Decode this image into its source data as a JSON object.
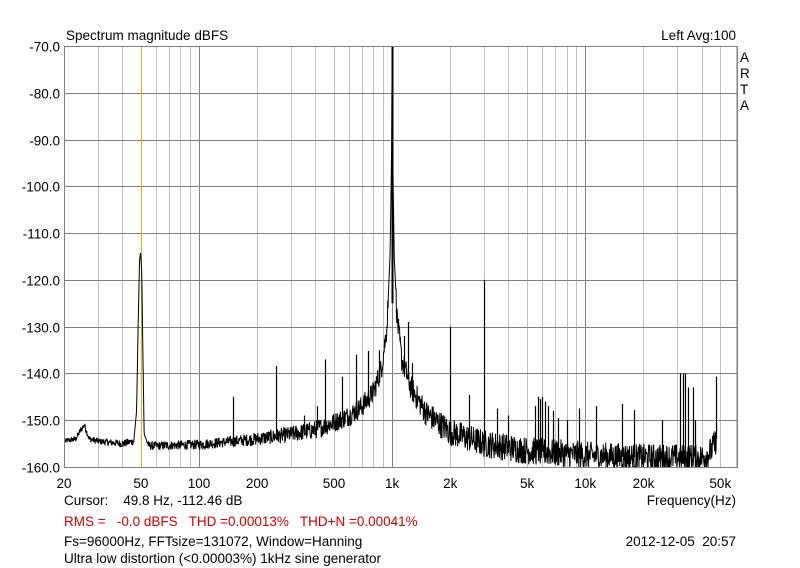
{
  "header": {
    "title": "Spectrum magnitude dBFS",
    "channel_avg": "Left  Avg:100",
    "brand_letters": [
      "A",
      "R",
      "T",
      "A"
    ]
  },
  "footer": {
    "cursor": "Cursor:    49.8 Hz, -112.46 dB",
    "xlabel": "Frequency(Hz)",
    "metrics": "RMS =   -0.0 dBFS   THD =0.00013%   THD+N =0.00041%",
    "params": "Fs=96000Hz, FFTsize=131072, Window=Hanning",
    "datetime": "2012-12-05  20:57",
    "note": "Ultra low distortion (<0.00003%) 1kHz sine generator"
  },
  "colors": {
    "trace": "#000000",
    "cursor": "#c8c000",
    "grid_major": "#808080",
    "grid_minor": "#c0c0c0",
    "metrics": "#d00000"
  },
  "chart_data": {
    "type": "line",
    "title": "Spectrum magnitude dBFS",
    "xlabel": "Frequency(Hz)",
    "ylabel": "dBFS",
    "xscale": "log",
    "xlim": [
      20,
      61000
    ],
    "ylim": [
      -160,
      -70
    ],
    "grid": true,
    "x_ticks": [
      20,
      50,
      100,
      200,
      500,
      1000,
      2000,
      5000,
      10000,
      20000,
      50000
    ],
    "x_tick_labels": [
      "20",
      "50",
      "100",
      "200",
      "500",
      "1k",
      "2k",
      "5k",
      "10k",
      "20k",
      "50k"
    ],
    "y_ticks": [
      -70,
      -80,
      -90,
      -100,
      -110,
      -120,
      -130,
      -140,
      -150,
      -160
    ],
    "y_tick_labels": [
      "-70.0",
      "-80.0",
      "-90.0",
      "-100.0",
      "-110.0",
      "-120.0",
      "-130.0",
      "-140.0",
      "-150.0",
      "-160.0"
    ],
    "cursor_hz": 49.8,
    "noise_floor": [
      [
        20,
        -154.5
      ],
      [
        23,
        -154
      ],
      [
        24.5,
        -152
      ],
      [
        25.5,
        -151
      ],
      [
        27,
        -154
      ],
      [
        30,
        -154.5
      ],
      [
        40,
        -155
      ],
      [
        46,
        -154.5
      ],
      [
        47.5,
        -148
      ],
      [
        48.5,
        -128
      ],
      [
        49.2,
        -116
      ],
      [
        49.8,
        -114
      ],
      [
        50.5,
        -118
      ],
      [
        51.2,
        -135
      ],
      [
        52,
        -153
      ],
      [
        55,
        -155.5
      ],
      [
        100,
        -155.2
      ],
      [
        150,
        -154.5
      ],
      [
        200,
        -154
      ],
      [
        300,
        -153
      ],
      [
        400,
        -152
      ],
      [
        500,
        -150.5
      ],
      [
        600,
        -149
      ],
      [
        700,
        -147
      ],
      [
        800,
        -144
      ],
      [
        880,
        -139
      ],
      [
        940,
        -130
      ],
      [
        975,
        -115
      ],
      [
        992,
        -95
      ],
      [
        1000,
        -70
      ],
      [
        1008,
        -95
      ],
      [
        1025,
        -115
      ],
      [
        1060,
        -128
      ],
      [
        1120,
        -137
      ],
      [
        1250,
        -143
      ],
      [
        1500,
        -148.5
      ],
      [
        2000,
        -152.5
      ],
      [
        3000,
        -155
      ],
      [
        5000,
        -156.5
      ],
      [
        10000,
        -157.5
      ],
      [
        20000,
        -158
      ],
      [
        40000,
        -158
      ],
      [
        44000,
        -157
      ],
      [
        47000,
        -155
      ],
      [
        48000,
        -153
      ]
    ],
    "noise_jitter_db": [
      [
        20,
        0.6
      ],
      [
        150,
        1.2
      ],
      [
        400,
        2.0
      ],
      [
        2000,
        3.0
      ],
      [
        48000,
        3.0
      ]
    ],
    "spikes": [
      [
        150,
        -145
      ],
      [
        250,
        -138.4
      ],
      [
        350,
        -149
      ],
      [
        410,
        -147
      ],
      [
        450,
        -137
      ],
      [
        550,
        -140.7
      ],
      [
        650,
        -136
      ],
      [
        750,
        -135.2
      ],
      [
        850,
        -135
      ],
      [
        1150,
        -132
      ],
      [
        1210,
        -129
      ],
      [
        1260,
        -137.8
      ],
      [
        2000,
        -130
      ],
      [
        2500,
        -144.6
      ],
      [
        3000,
        -120
      ],
      [
        3500,
        -147.5
      ],
      [
        4000,
        -149
      ],
      [
        5500,
        -147
      ],
      [
        5700,
        -145
      ],
      [
        5800,
        -145.5
      ],
      [
        6000,
        -145
      ],
      [
        6200,
        -146
      ],
      [
        6400,
        -147
      ],
      [
        6800,
        -148
      ],
      [
        7200,
        -149.5
      ],
      [
        8000,
        -150
      ],
      [
        9300,
        -147.5
      ],
      [
        11300,
        -147
      ],
      [
        15500,
        -146.5
      ],
      [
        17800,
        -147.8
      ],
      [
        25000,
        -150
      ],
      [
        31000,
        -140
      ],
      [
        32000,
        -140
      ],
      [
        33000,
        -140
      ],
      [
        34000,
        -143
      ],
      [
        36000,
        -143
      ],
      [
        37000,
        -150
      ],
      [
        47500,
        -140.7
      ]
    ]
  }
}
